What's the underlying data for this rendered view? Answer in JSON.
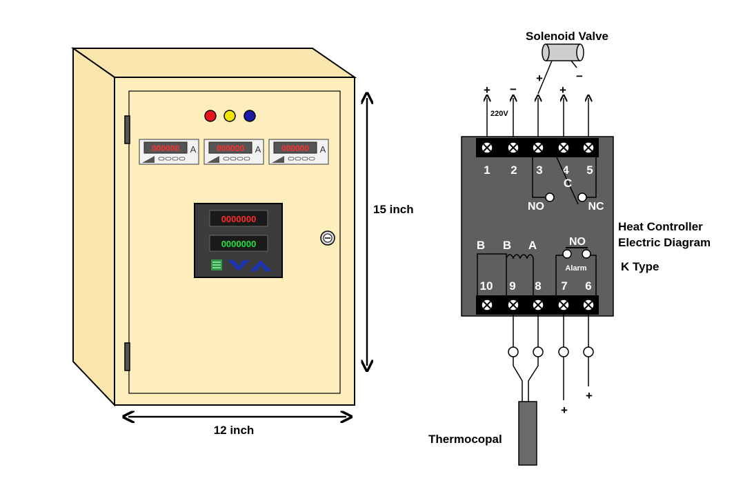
{
  "cabinet": {
    "meters": [
      {
        "reading": "000000",
        "unit": "A"
      },
      {
        "reading": "000000",
        "unit": "A"
      },
      {
        "reading": "000000",
        "unit": "A"
      }
    ],
    "lights": [
      "#e8141c",
      "#f2e600",
      "#1c1ca8"
    ],
    "controller_top_reading": "0000000",
    "controller_bottom_reading": "0000000",
    "height_label": "15 inch",
    "width_label": "12 inch"
  },
  "diagram": {
    "solenoid_label": "Solenoid Valve",
    "solenoid_plus": "+",
    "solenoid_minus": "−",
    "power_plus": "+",
    "power_minus": "−",
    "voltage": "220V",
    "terminal3_plus": "+",
    "terminal4_plus": "+",
    "top_terminals": [
      "1",
      "2",
      "3",
      "4",
      "5"
    ],
    "common_label": "C",
    "no_label": "NO",
    "nc_label": "NC",
    "b_label_1": "B",
    "b_label_2": "B",
    "a_label": "A",
    "alarm_no_label": "NO",
    "alarm_label": "Alarm",
    "bottom_terminals": [
      "10",
      "9",
      "8",
      "7",
      "6"
    ],
    "title_line1": "Heat Controller",
    "title_line2": "Electric Diagram",
    "type_label": "K Type",
    "bottom_plus_1": "+",
    "bottom_plus_2": "+",
    "thermocouple_label": "Thermocopal"
  }
}
